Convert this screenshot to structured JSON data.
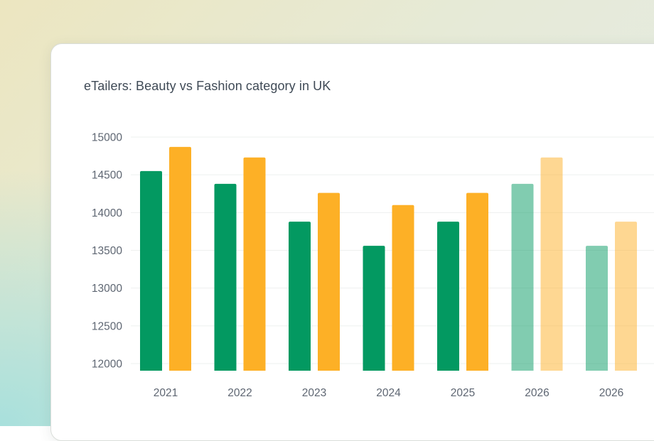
{
  "chart_data": {
    "type": "bar",
    "title": "eTailers: Beauty vs Fashion category in UK",
    "xlabel": "",
    "ylabel": "",
    "categories": [
      "2021",
      "2022",
      "2023",
      "2024",
      "2025",
      "2026",
      "2026"
    ],
    "series": [
      {
        "color": "#039961",
        "values": [
          14550,
          14380,
          13880,
          13560,
          13880,
          14380,
          13560
        ],
        "faded": [
          false,
          false,
          false,
          false,
          false,
          true,
          true
        ]
      },
      {
        "color": "#fdb026",
        "values": [
          14870,
          14730,
          14260,
          14100,
          14260,
          14730,
          13880
        ],
        "faded": [
          false,
          false,
          false,
          false,
          false,
          true,
          true
        ]
      }
    ],
    "ylim": [
      12000,
      15000
    ],
    "yticks": [
      15000,
      14500,
      14000,
      13500,
      13000,
      12500,
      12000
    ],
    "grid": true,
    "legend": "none"
  }
}
